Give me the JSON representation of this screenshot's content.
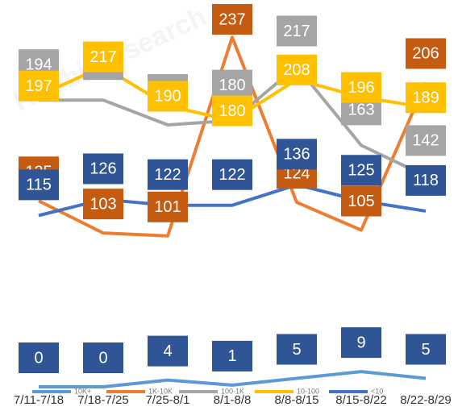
{
  "chart_data": {
    "type": "line",
    "watermark": "Huobi Research",
    "categories": [
      "7/11-7/18",
      "7/18-7/25",
      "7/25-8/1",
      "8/1-8/8",
      "8/8-8/15",
      "8/15-8/22",
      "8/22-8/29"
    ],
    "ylim": [
      97,
      257
    ],
    "y2lim": [
      0,
      100
    ],
    "series": [
      {
        "name": "10K+",
        "color": "#5b9bd5",
        "label_color": "#2f5597",
        "axis": "y2",
        "values": [
          0,
          0,
          4,
          1,
          5,
          9,
          5
        ]
      },
      {
        "name": "1K-10K",
        "color": "#ed7d31",
        "label_color": "#c55a11",
        "values": [
          125,
          103,
          101,
          237,
          124,
          105,
          206
        ]
      },
      {
        "name": "100-1K",
        "color": "#a5a5a5",
        "label_color": "#a5a5a5",
        "values": [
          194,
          194,
          177,
          180,
          217,
          163,
          142
        ]
      },
      {
        "name": "10-100",
        "color": "#ffc000",
        "label_color": "#ffc000",
        "values": [
          197,
          217,
          190,
          180,
          208,
          196,
          189
        ]
      },
      {
        "name": "<10",
        "color": "#4472c4",
        "label_color": "#2f5597",
        "values": [
          115,
          126,
          122,
          122,
          136,
          125,
          118
        ]
      }
    ]
  }
}
